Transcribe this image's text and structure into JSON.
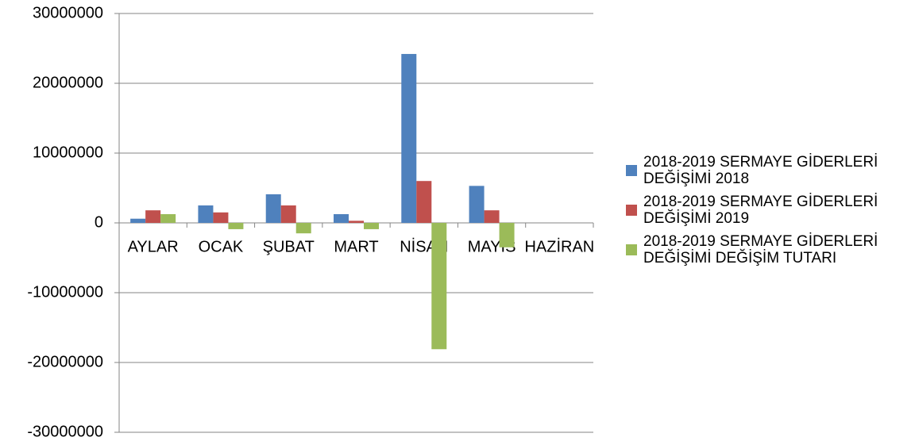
{
  "chart_data": {
    "type": "bar",
    "categories": [
      "AYLAR",
      "OCAK",
      "ŞUBAT",
      "MART",
      "NİSAN",
      "MAYIS",
      "HAZİRAN"
    ],
    "series": [
      {
        "name": "2018-2019 SERMAYE GİDERLERİ DEĞİŞİMİ 2018",
        "color": "#4f81bd",
        "values": [
          600000,
          2500000,
          4100000,
          1250000,
          24200000,
          5300000,
          null
        ]
      },
      {
        "name": "2018-2019 SERMAYE GİDERLERİ DEĞİŞİMİ 2019",
        "color": "#c0504d",
        "values": [
          1800000,
          1500000,
          2500000,
          300000,
          6000000,
          1800000,
          null
        ]
      },
      {
        "name": "2018-2019 SERMAYE GİDERLERİ DEĞİŞİMİ DEĞİŞİM TUTARI",
        "color": "#9bbb59",
        "values": [
          1250000,
          -900000,
          -1500000,
          -900000,
          -18100000,
          -3500000,
          null
        ]
      }
    ],
    "ylim": [
      -30000000,
      30000000
    ],
    "yticks": [
      -30000000,
      -20000000,
      -10000000,
      0,
      10000000,
      20000000,
      30000000
    ],
    "grid": true,
    "legend": "right"
  }
}
